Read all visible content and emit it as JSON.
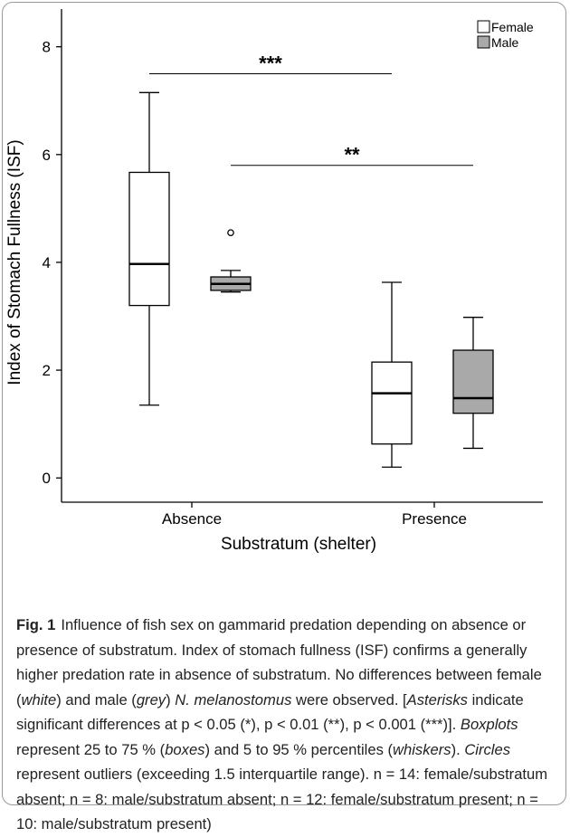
{
  "chart_data": {
    "type": "box",
    "y_label": "Index of Stomach Fullness (ISF)",
    "x_label": "Substratum (shelter)",
    "categories": [
      "Absence",
      "Presence"
    ],
    "ylim": [
      -0.45,
      8.7
    ],
    "yticks": [
      0,
      2,
      4,
      6,
      8
    ],
    "legend": "top-right",
    "series": [
      {
        "name": "Female",
        "color": "#ffffff",
        "boxes": [
          {
            "whislo": 1.35,
            "q1": 3.2,
            "med": 3.97,
            "q3": 5.67,
            "whishi": 7.15,
            "fliers": []
          },
          {
            "whislo": 0.2,
            "q1": 0.63,
            "med": 1.57,
            "q3": 2.15,
            "whishi": 3.63,
            "fliers": []
          }
        ]
      },
      {
        "name": "Male",
        "color": "#a9a9a9",
        "boxes": [
          {
            "whislo": 3.45,
            "q1": 3.48,
            "med": 3.6,
            "q3": 3.73,
            "whishi": 3.85,
            "fliers": [
              4.55
            ]
          },
          {
            "whislo": 0.55,
            "q1": 1.2,
            "med": 1.48,
            "q3": 2.37,
            "whishi": 2.98,
            "fliers": []
          }
        ]
      }
    ],
    "annotations": [
      {
        "label": "***",
        "y": 7.5
      },
      {
        "label": "**",
        "y": 5.8
      }
    ]
  },
  "caption": {
    "label": "Fig. 1",
    "parts": [
      "Influence of fish sex on gammarid predation depending on absence or presence of substratum. Index of stomach fullness (ISF) confirms a generally higher predation rate in absence of substratum. No differences between female (",
      "white",
      ") and male (",
      "grey",
      ") ",
      "N. melanostomus",
      " were observed. [",
      "Asterisks",
      " indicate significant differences at p < 0.05 (*), p < 0.01 (**), p < 0.001 (***)]. ",
      "Boxplots",
      " represent 25 to 75 % (",
      "boxes",
      ") and 5 to 95 % percentiles (",
      "whiskers",
      "). ",
      "Circles",
      " represent outliers (exceeding 1.5 interquartile range). n = 14: female/substratum absent; n = 8: male/substratum absent; n = 12: female/substratum present; n = 10: male/substratum present)"
    ]
  }
}
